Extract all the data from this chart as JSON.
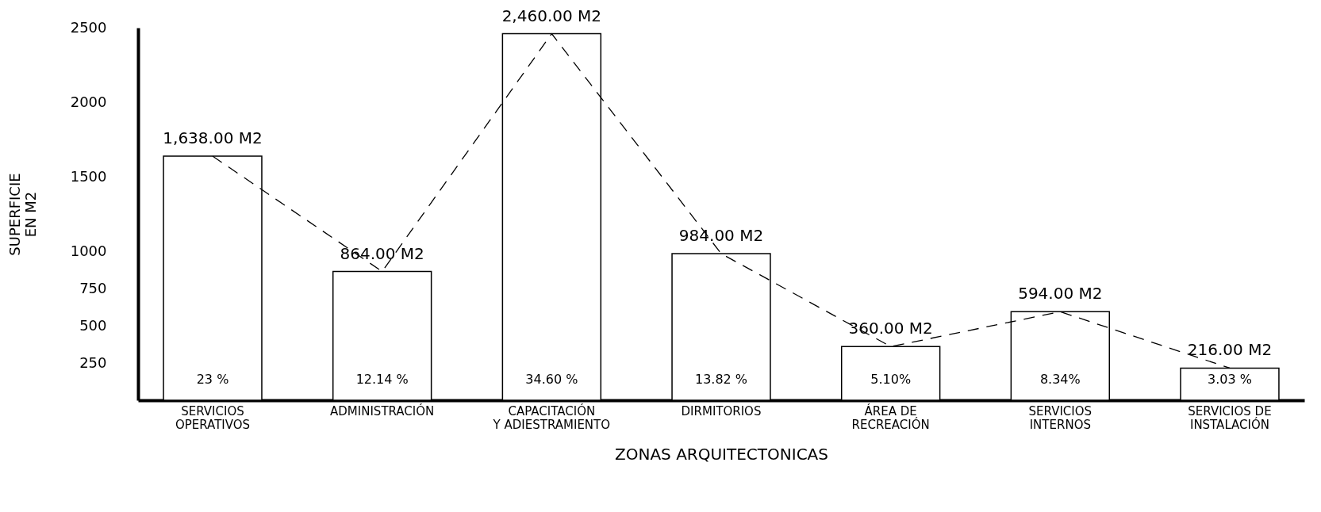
{
  "chart_data": {
    "type": "bar",
    "xlabel": "ZONAS ARQUITECTONICAS",
    "ylabel": "SUPERFICIE\nEN M2",
    "categories": [
      "SERVICIOS\nOPERATIVOS",
      "ADMINISTRACIÓN",
      "CAPACITACIÓN\nY ADIESTRAMIENTO",
      "DIRMITORIOS",
      "ÁREA DE\nRECREACIÓN",
      "SERVICIOS\nINTERNOS",
      "SERVICIOS DE\nINSTALACIÓN"
    ],
    "series": [
      {
        "color": "#ffffff",
        "values": [
          1638,
          864,
          2460,
          984,
          360,
          594,
          216
        ],
        "value_labels": [
          "1,638.00 M2",
          "864.00 M2",
          "2,460.00 M2",
          "984.00  M2",
          "360.00 M2",
          "594.00 M2",
          "216.00 M2"
        ]
      },
      {
        "type": "line",
        "color": "#000000",
        "line_style": "dashed",
        "marker": "none",
        "values": [
          1638,
          864,
          2460,
          984,
          360,
          594,
          216
        ]
      }
    ],
    "ylim": [
      0,
      2500
    ],
    "yticks": [
      250,
      500,
      750,
      1000,
      1500,
      2000,
      2500
    ],
    "grid": false,
    "annotations": [
      "23 %",
      "12.14 %",
      "34.60 %",
      "13.82 %",
      "5.10%",
      "8.34%",
      "3.03 %"
    ]
  }
}
